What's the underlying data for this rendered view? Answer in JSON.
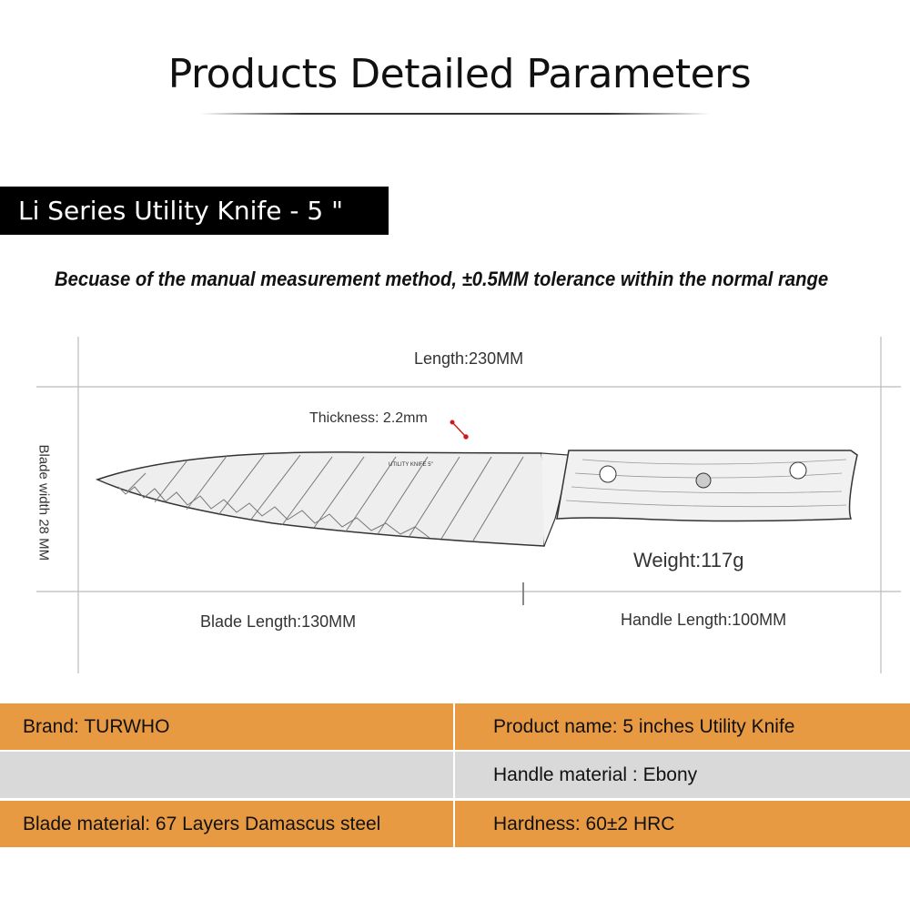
{
  "header": {
    "title": "Products Detailed Parameters"
  },
  "banner": {
    "label": "Li Series Utility Knife - 5 \""
  },
  "note": "Becuase of the manual measurement method, ±0.5MM tolerance within the normal range",
  "dimensions": {
    "length": "Length:230MM",
    "thickness": "Thickness: 2.2mm",
    "blade_width": "Blade width 28 MM",
    "weight": "Weight:117g",
    "blade_length": "Blade Length:130MM",
    "handle_length": "Handle Length:100MM"
  },
  "knife_logo_text": "UTILITY KNIFE 5\"",
  "specs": [
    {
      "left": "Brand: TURWHO",
      "right": "Product name: 5 inches Utility Knife",
      "color": "#E89A42"
    },
    {
      "left": "",
      "right": "Handle material : Ebony",
      "color": "#d9d9d9"
    },
    {
      "left": "Blade material: 67 Layers Damascus steel",
      "right": "Hardness: 60±2 HRC",
      "color": "#E89A42"
    }
  ],
  "colors": {
    "accent": "#E89A42",
    "banner_bg": "#000000",
    "marker": "#d01818"
  }
}
